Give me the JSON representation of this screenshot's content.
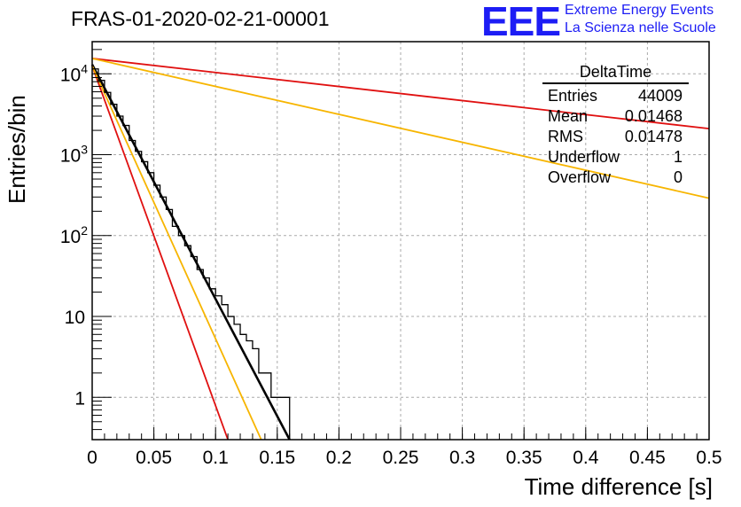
{
  "header": {
    "run_title": "FRAS-01-2020-02-21-00001",
    "logo_text": "EEE",
    "brand_line1": "Extreme Energy Events",
    "brand_line2": "La Scienza nelle Scuole"
  },
  "stats_box": {
    "title": "DeltaTime",
    "rows": [
      {
        "label": "Entries",
        "value": "44009"
      },
      {
        "label": "Mean",
        "value": "0.01468"
      },
      {
        "label": "RMS",
        "value": "0.01478"
      },
      {
        "label": "Underflow",
        "value": "1"
      },
      {
        "label": "Overflow",
        "value": "0"
      }
    ]
  },
  "chart_data": {
    "type": "line",
    "xlabel": "Time difference [s]",
    "ylabel": "Entries/bin",
    "xlim": [
      0,
      0.5
    ],
    "ylim": [
      0.3,
      25000
    ],
    "yscale": "log",
    "grid": true,
    "x_ticks": [
      "0",
      "0.05",
      "0.1",
      "0.15",
      "0.2",
      "0.25",
      "0.3",
      "0.35",
      "0.4",
      "0.45",
      "0.5"
    ],
    "x_tick_values": [
      0,
      0.05,
      0.1,
      0.15,
      0.2,
      0.25,
      0.3,
      0.35,
      0.4,
      0.45,
      0.5
    ],
    "y_ticks": [
      "1",
      "10",
      "10^2",
      "10^3",
      "10^4"
    ],
    "y_tick_values": [
      1,
      10,
      100,
      1000,
      10000
    ],
    "histogram": {
      "name": "DeltaTime",
      "color": "#000000",
      "bin_width": 0.005,
      "x": [
        0.0025,
        0.0075,
        0.0125,
        0.0175,
        0.0225,
        0.0275,
        0.0325,
        0.0375,
        0.0425,
        0.0475,
        0.0525,
        0.0575,
        0.0625,
        0.0675,
        0.0725,
        0.0775,
        0.0825,
        0.0875,
        0.0925,
        0.0975,
        0.1025,
        0.1075,
        0.1125,
        0.1175,
        0.1225,
        0.1275,
        0.1325,
        0.1375,
        0.1425,
        0.1475,
        0.1525,
        0.1575
      ],
      "values": [
        11500,
        8300,
        5900,
        4200,
        3000,
        2300,
        1500,
        1100,
        820,
        600,
        420,
        300,
        210,
        130,
        100,
        75,
        55,
        38,
        30,
        22,
        18,
        14,
        10,
        8,
        6,
        5,
        4,
        2,
        2,
        1,
        1,
        1
      ]
    },
    "series": [
      {
        "name": "",
        "color": "#000000",
        "x": [
          0,
          0.16
        ],
        "y": [
          13000,
          0.3
        ]
      },
      {
        "name": "",
        "color": "#e01010",
        "x": [
          0,
          0.11
        ],
        "y": [
          12500,
          0.3
        ]
      },
      {
        "name": "",
        "color": "#f7b500",
        "x": [
          0,
          0.137
        ],
        "y": [
          12500,
          0.3
        ]
      },
      {
        "name": "",
        "color": "#e01010",
        "x": [
          0,
          0.5
        ],
        "y": [
          15500,
          2100
        ]
      },
      {
        "name": "",
        "color": "#f7b500",
        "x": [
          0,
          0.5
        ],
        "y": [
          15500,
          290
        ]
      }
    ]
  }
}
